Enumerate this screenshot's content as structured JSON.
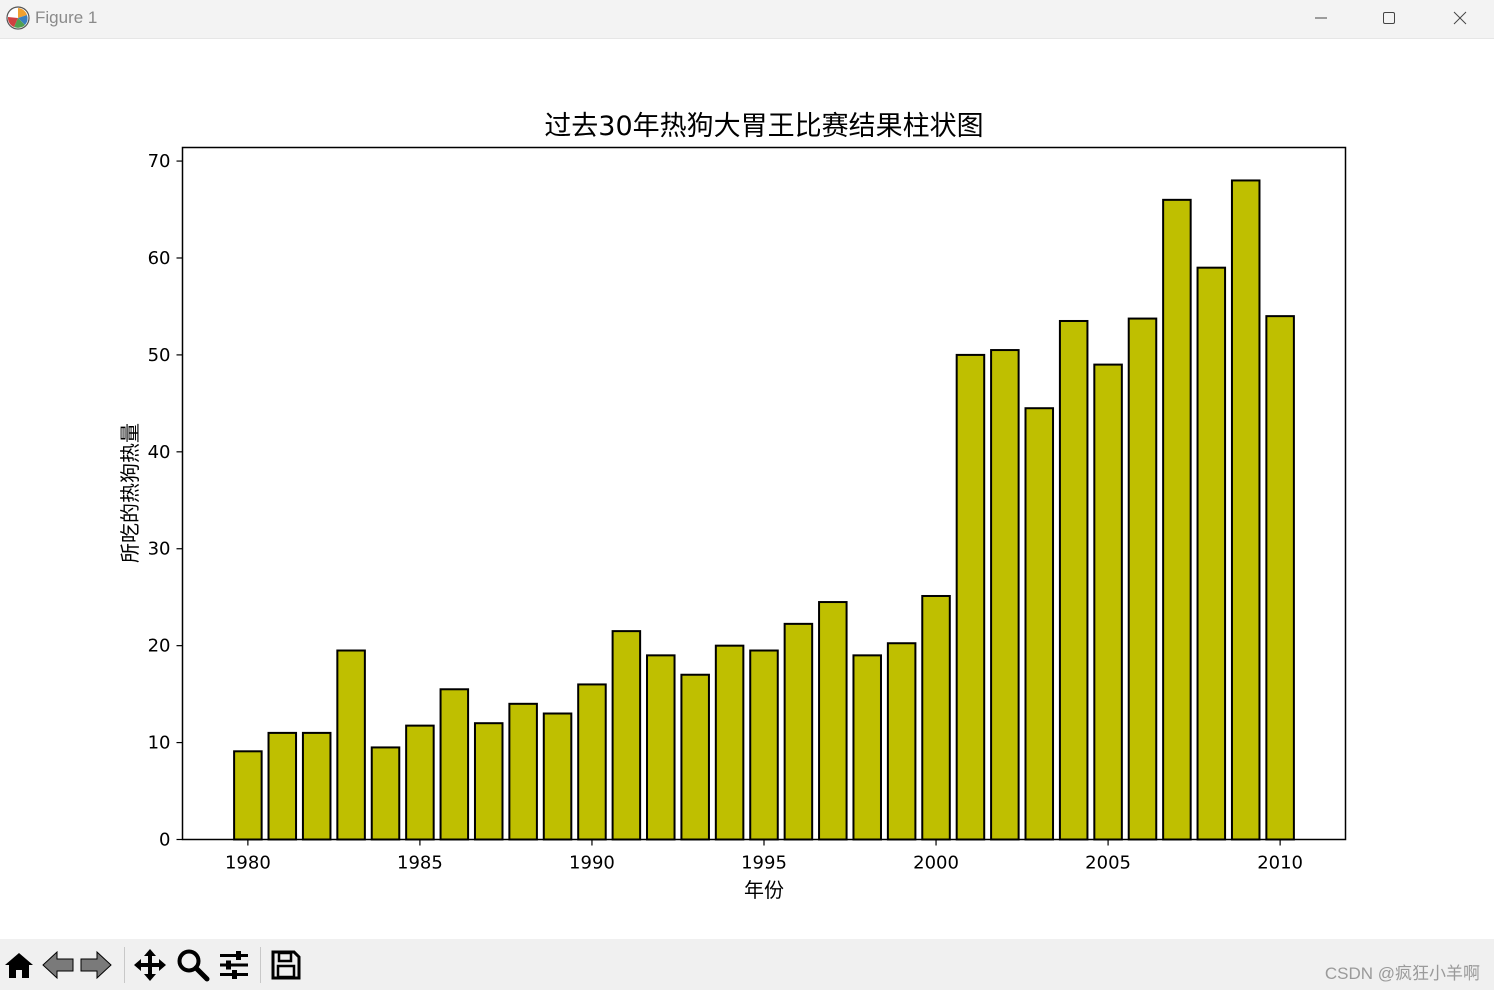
{
  "window": {
    "title": "Figure 1"
  },
  "icons": {
    "app": "matplotlib-icon",
    "minimize": "minimize-icon",
    "maximize": "maximize-icon",
    "close": "close-icon",
    "home": "home-icon",
    "back": "back-arrow-icon",
    "forward": "forward-arrow-icon",
    "pan": "move-icon",
    "zoom": "magnifier-icon",
    "configure": "sliders-icon",
    "save": "floppy-disk-icon"
  },
  "watermark": "CSDN @疯狂小羊啊",
  "colors": {
    "bar_fill": "#bfbf00",
    "bar_edge": "#000000"
  },
  "chart_data": {
    "type": "bar",
    "title": "过去30年热狗大胃王比赛结果柱状图",
    "xlabel": "年份",
    "ylabel": "所吃的热狗热量",
    "x": [
      1980,
      1981,
      1982,
      1983,
      1984,
      1985,
      1986,
      1987,
      1988,
      1989,
      1990,
      1991,
      1992,
      1993,
      1994,
      1995,
      1996,
      1997,
      1998,
      1999,
      2000,
      2001,
      2002,
      2003,
      2004,
      2005,
      2006,
      2007,
      2008,
      2009,
      2010
    ],
    "values": [
      9.1,
      11,
      11,
      19.5,
      9.5,
      11.75,
      15.5,
      12,
      14,
      13,
      16,
      21.5,
      19,
      17,
      20,
      19.5,
      22.25,
      24.5,
      19,
      20.25,
      25.125,
      50,
      50.5,
      44.5,
      53.5,
      49,
      53.75,
      66,
      59,
      68,
      54
    ],
    "xticks": [
      1980,
      1985,
      1990,
      1995,
      2000,
      2005,
      2010
    ],
    "yticks": [
      0,
      10,
      20,
      30,
      40,
      50,
      60,
      70
    ],
    "xlim": [
      1978.1,
      2011.9
    ],
    "ylim": [
      0,
      71.4
    ],
    "grid": false
  }
}
